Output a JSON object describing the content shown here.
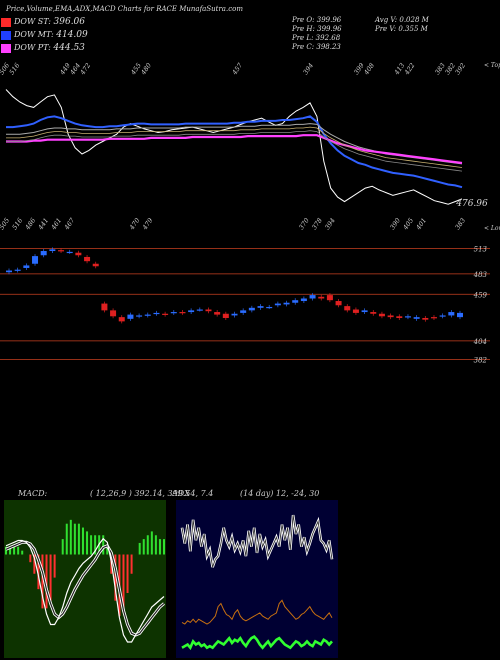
{
  "header": {
    "title": "Price,Volume,EMA,ADX,MACD Charts for RACE MunafaSutra.com",
    "legend": [
      {
        "label": "DOW ST:",
        "value": "396.06",
        "color": "#ff2a2a"
      },
      {
        "label": "DOW MT:",
        "value": "414.09",
        "color": "#2040ff"
      },
      {
        "label": "DOW PT:",
        "value": "444.53",
        "color": "#ff40ff"
      }
    ],
    "pre_o": "Pre   O: 399.96",
    "pre_h": "Pre   H: 399.96",
    "pre_l": "Pre   L: 392.68",
    "pre_c": "Pre   C: 398.23",
    "avg_v": "Avg V: 0.028 M",
    "pre_v": "Pre   V: 0.355 M"
  },
  "colors": {
    "bg": "#000000",
    "up": "#2a6cff",
    "down": "#e02020",
    "ema_short": "#ffffff",
    "ema_blue": "#3060ff",
    "ema_pink": "#ff40ff",
    "macd_bg": "#0d3300",
    "adx_bg": "#000033",
    "band": "#c84020"
  },
  "chart_data": [
    {
      "type": "line",
      "name": "price-ema",
      "top_labels": [
        "506",
        "516",
        "",
        "",
        "",
        "",
        "449",
        "464",
        "472",
        "",
        "",
        "",
        "",
        "455",
        "480",
        "",
        "",
        "",
        "",
        "",
        "",
        "",
        "",
        "457",
        "",
        "",
        "",
        "",
        "",
        "",
        "394",
        "",
        "",
        "",
        "",
        "399",
        "408",
        "",
        "",
        "413",
        "422",
        "",
        "",
        "383",
        "382",
        "392"
      ],
      "top_right_label": "< Tops",
      "bottom_labels": [
        "505",
        "516",
        "486",
        "441",
        "461",
        "467",
        "",
        "",
        "",
        "",
        "470",
        "479",
        "",
        "",
        "",
        "",
        "",
        "",
        "",
        "",
        "",
        "",
        "",
        "370",
        "378",
        "394",
        "",
        "",
        "",
        "",
        "390",
        "405",
        "401",
        "",
        "",
        "383"
      ],
      "bottom_right_label": "< Lows",
      "last_value_label": "476.96",
      "series": [
        {
          "values": [
            520,
            512,
            506,
            502,
            500,
            506,
            512,
            514,
            500,
            470,
            455,
            448,
            452,
            458,
            462,
            466,
            470,
            478,
            482,
            479,
            476,
            474,
            472,
            473,
            475,
            476,
            477,
            478,
            476,
            474,
            472,
            474,
            476,
            478,
            481,
            484,
            486,
            488,
            484,
            480,
            482,
            490,
            496,
            500,
            505,
            490,
            440,
            410,
            400,
            395,
            400,
            405,
            410,
            412,
            408,
            405,
            402,
            404,
            406,
            408,
            404,
            400,
            396,
            394,
            392,
            395,
            398
          ]
        },
        {
          "values": [
            478,
            478,
            479,
            480,
            482,
            486,
            489,
            490,
            488,
            485,
            482,
            480,
            479,
            478,
            478,
            479,
            479,
            480,
            481,
            482,
            482,
            481,
            481,
            481,
            481,
            481,
            482,
            482,
            482,
            482,
            482,
            482,
            482,
            483,
            483,
            484,
            484,
            485,
            485,
            485,
            486,
            486,
            487,
            488,
            490,
            484,
            470,
            460,
            452,
            446,
            442,
            438,
            436,
            433,
            431,
            429,
            427,
            426,
            425,
            424,
            422,
            420,
            418,
            416,
            414,
            413,
            411
          ]
        },
        {
          "values": [
            470,
            470,
            470,
            471,
            472,
            474,
            476,
            477,
            477,
            476,
            476,
            475,
            475,
            475,
            475,
            475,
            476,
            476,
            476,
            477,
            477,
            477,
            477,
            477,
            477,
            477,
            478,
            478,
            478,
            478,
            478,
            478,
            478,
            478,
            479,
            479,
            479,
            480,
            480,
            480,
            480,
            480,
            481,
            481,
            482,
            481,
            475,
            470,
            466,
            462,
            459,
            456,
            454,
            452,
            450,
            448,
            447,
            446,
            445,
            444,
            443,
            442,
            441,
            440,
            439,
            438,
            437
          ]
        },
        {
          "values": [
            462,
            462,
            462,
            462,
            463,
            463,
            464,
            464,
            464,
            464,
            464,
            464,
            464,
            464,
            464,
            465,
            465,
            465,
            465,
            465,
            465,
            466,
            466,
            466,
            466,
            466,
            466,
            467,
            467,
            467,
            467,
            467,
            467,
            467,
            467,
            468,
            468,
            468,
            468,
            468,
            468,
            468,
            468,
            469,
            469,
            469,
            466,
            463,
            460,
            458,
            456,
            454,
            452,
            451,
            450,
            449,
            448,
            447,
            446,
            445,
            444,
            443,
            442,
            441,
            440,
            439,
            438
          ]
        }
      ]
    },
    {
      "type": "bar",
      "name": "candles",
      "levels": [
        "513",
        "483",
        "459",
        "404",
        "382"
      ],
      "open": [
        485,
        487,
        490,
        495,
        505,
        510,
        511,
        509,
        508,
        503,
        495,
        448,
        440,
        432,
        430,
        433,
        434,
        436,
        436,
        437,
        438,
        438,
        441,
        441,
        438,
        436,
        434,
        437,
        440,
        443,
        444,
        446,
        447,
        449,
        451,
        454,
        456,
        458,
        451,
        445,
        441,
        438,
        438,
        436,
        434,
        433,
        432,
        430,
        431,
        432,
        433,
        434,
        432
      ],
      "close": [
        487,
        488,
        493,
        504,
        510,
        512,
        510,
        509,
        505,
        498,
        492,
        440,
        433,
        427,
        435,
        434,
        435,
        437,
        435,
        438,
        437,
        440,
        441,
        439,
        435,
        431,
        436,
        440,
        443,
        445,
        444,
        448,
        449,
        452,
        454,
        458,
        454,
        452,
        446,
        440,
        437,
        440,
        436,
        433,
        432,
        431,
        433,
        432,
        429,
        431,
        434,
        438,
        437
      ]
    },
    {
      "type": "line",
      "name": "macd",
      "title": "MACD:",
      "params": "( 12,26,9 ) 392.14,  399.54,  7.4",
      "series": [
        {
          "values": [
            5,
            6,
            7,
            8,
            8,
            7,
            4,
            -2,
            -12,
            -24,
            -34,
            -40,
            -40,
            -36,
            -30,
            -22,
            -16,
            -12,
            -8,
            -5,
            -3,
            -1,
            2,
            6,
            9,
            7,
            -4,
            -20,
            -36,
            -46,
            -50,
            -50,
            -46,
            -42,
            -38,
            -34,
            -30,
            -28,
            -26,
            -24
          ]
        },
        {
          "values": [
            3,
            4,
            5,
            6,
            7,
            7,
            6,
            3,
            -3,
            -10,
            -20,
            -28,
            -34,
            -36,
            -34,
            -30,
            -25,
            -20,
            -16,
            -12,
            -9,
            -6,
            -3,
            1,
            4,
            5,
            1,
            -8,
            -20,
            -32,
            -40,
            -45,
            -46,
            -45,
            -42,
            -39,
            -36,
            -33,
            -30,
            -28
          ]
        }
      ]
    },
    {
      "type": "line",
      "name": "adx",
      "title": "ADX",
      "params": "(14 day) 12,  -24,  30",
      "series": [
        {
          "values": [
            70,
            60,
            72,
            55,
            75,
            62,
            70,
            58,
            66,
            52,
            56,
            45,
            50,
            52,
            60,
            70,
            62,
            58,
            64,
            56,
            60,
            55,
            62,
            52,
            68,
            58,
            70,
            54,
            66,
            58,
            62,
            52,
            56,
            60,
            64,
            58,
            72,
            62,
            70,
            56,
            78,
            66,
            72,
            58,
            64,
            55,
            60,
            66,
            70,
            74,
            62,
            60,
            56,
            62,
            50
          ]
        },
        {
          "values": [
            10,
            9,
            11,
            10,
            12,
            10,
            12,
            11,
            10,
            9,
            10,
            12,
            14,
            20,
            22,
            18,
            15,
            14,
            12,
            16,
            18,
            14,
            12,
            11,
            12,
            13,
            14,
            15,
            16,
            14,
            13,
            12,
            14,
            15,
            16,
            22,
            24,
            20,
            18,
            16,
            14,
            12,
            13,
            15,
            16,
            18,
            20,
            17,
            15,
            14,
            13,
            12,
            14,
            16,
            13
          ]
        },
        {
          "values": [
            -6,
            -5,
            -4,
            -6,
            -2,
            -4,
            -3,
            -5,
            -4,
            -6,
            -5,
            -6,
            -4,
            -2,
            -3,
            -4,
            -2,
            0,
            -3,
            -1,
            -2,
            0,
            -3,
            -5,
            -2,
            0,
            1,
            -1,
            -4,
            -6,
            -4,
            -2,
            -5,
            -3,
            -1,
            0,
            -2,
            -4,
            -5,
            -6,
            -4,
            -2,
            -3,
            -5,
            -4,
            -2,
            -4,
            -5,
            -2,
            -3,
            -4,
            -1,
            -2,
            -4,
            -2
          ]
        }
      ]
    }
  ]
}
